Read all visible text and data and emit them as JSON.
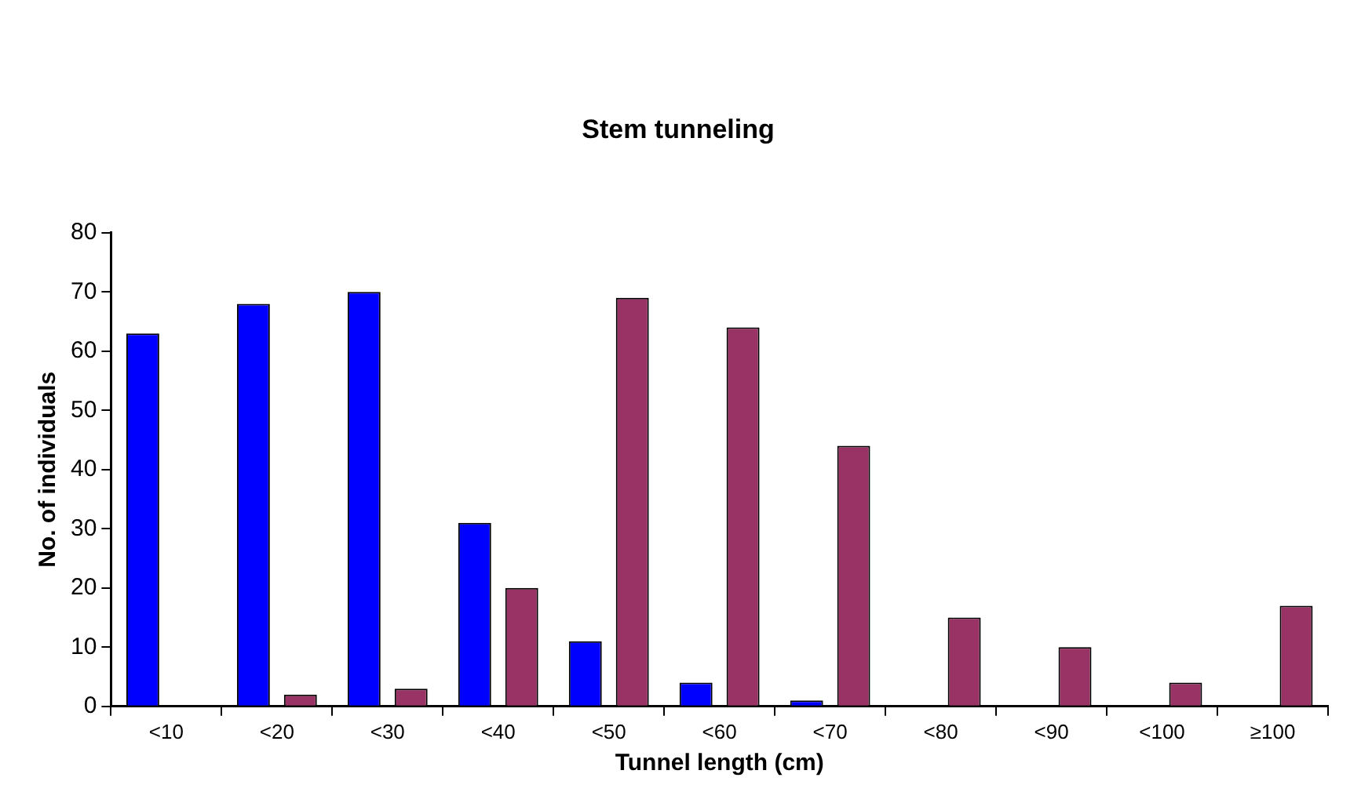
{
  "chart_data": {
    "type": "bar",
    "title": "Stem tunneling",
    "xlabel": "Tunnel length (cm)",
    "ylabel": "No. of individuals",
    "categories": [
      "<10",
      "<20",
      "<30",
      "<40",
      "<50",
      "<60",
      "<70",
      "<80",
      "<90",
      "<100",
      "≥100"
    ],
    "series": [
      {
        "color": "#0000ff",
        "values": [
          63,
          68,
          70,
          31,
          11,
          4,
          1,
          0,
          0,
          0,
          0
        ]
      },
      {
        "color": "#993366",
        "values": [
          0,
          2,
          3,
          20,
          69,
          64,
          44,
          15,
          10,
          4,
          17
        ]
      }
    ],
    "ylim": [
      0,
      80
    ],
    "yticks": [
      0,
      10,
      20,
      30,
      40,
      50,
      60,
      70,
      80
    ],
    "grid": false,
    "legend": false
  }
}
